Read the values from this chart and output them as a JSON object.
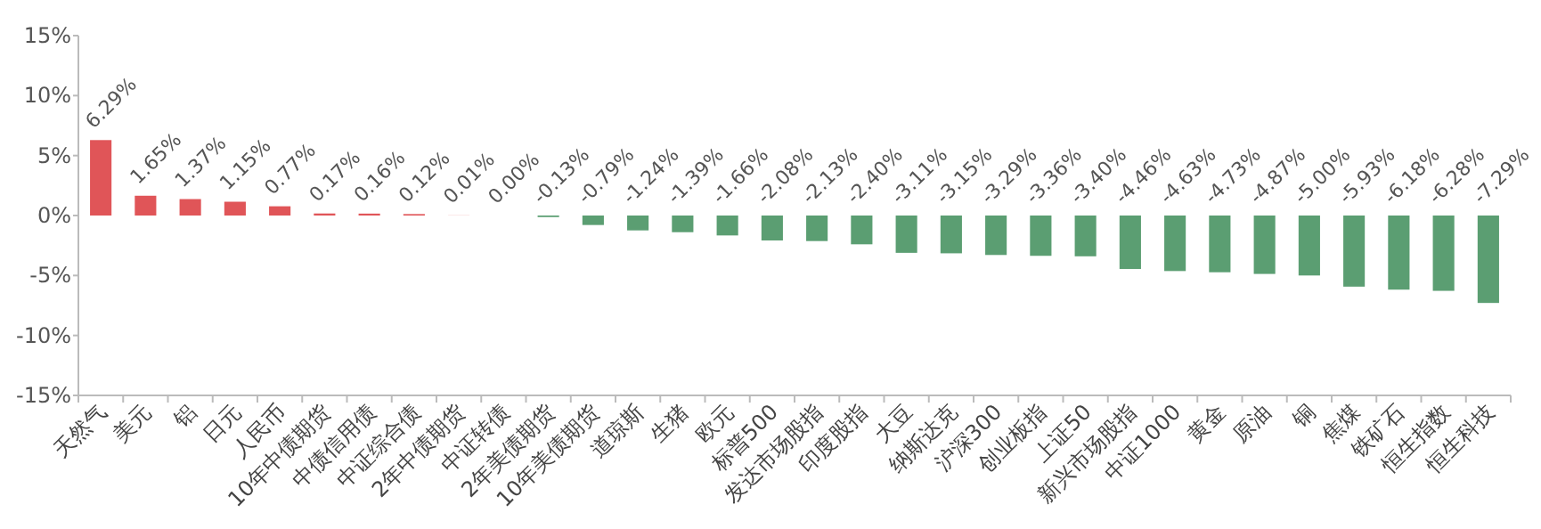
{
  "chart_data": {
    "type": "bar",
    "categories": [
      "天然气",
      "美元",
      "铝",
      "日元",
      "人民币",
      "10年中债期货",
      "中债信用债",
      "中证综合债",
      "2年中债期货",
      "中证转债",
      "2年美债期货",
      "10年美债期货",
      "道琼斯",
      "生猪",
      "欧元",
      "标普500",
      "发达市场股指",
      "印度股指",
      "大豆",
      "纳斯达克",
      "沪深300",
      "创业板指",
      "上证50",
      "新兴市场股指",
      "中证1000",
      "黄金",
      "原油",
      "铜",
      "焦煤",
      "铁矿石",
      "恒生指数",
      "恒生科技"
    ],
    "values": [
      6.29,
      1.65,
      1.37,
      1.15,
      0.77,
      0.17,
      0.16,
      0.12,
      0.01,
      0.0,
      -0.13,
      -0.79,
      -1.24,
      -1.39,
      -1.66,
      -2.08,
      -2.13,
      -2.4,
      -3.11,
      -3.15,
      -3.29,
      -3.36,
      -3.4,
      -4.46,
      -4.63,
      -4.73,
      -4.87,
      -5.0,
      -5.93,
      -6.18,
      -6.28,
      -7.29
    ],
    "value_labels": [
      "6.29%",
      "1.65%",
      "1.37%",
      "1.15%",
      "0.77%",
      "0.17%",
      "0.16%",
      "0.12%",
      "0.01%",
      "0.00%",
      "-0.13%",
      "-0.79%",
      "-1.24%",
      "-1.39%",
      "-1.66%",
      "-2.08%",
      "-2.13%",
      "-2.40%",
      "-3.11%",
      "-3.15%",
      "-3.29%",
      "-3.36%",
      "-3.40%",
      "-4.46%",
      "-4.63%",
      "-4.73%",
      "-4.87%",
      "-5.00%",
      "-5.93%",
      "-6.18%",
      "-6.28%",
      "-7.29%"
    ],
    "colors": [
      "#e05558",
      "#e05558",
      "#e05558",
      "#e05558",
      "#e05558",
      "#e05558",
      "#e05558",
      "#e05558",
      "#e05558",
      "#5b9e72",
      "#5b9e72",
      "#5b9e72",
      "#5b9e72",
      "#5b9e72",
      "#5b9e72",
      "#5b9e72",
      "#5b9e72",
      "#5b9e72",
      "#5b9e72",
      "#5b9e72",
      "#5b9e72",
      "#5b9e72",
      "#5b9e72",
      "#5b9e72",
      "#5b9e72",
      "#5b9e72",
      "#5b9e72",
      "#5b9e72",
      "#5b9e72",
      "#5b9e72",
      "#5b9e72",
      "#5b9e72"
    ],
    "ylim": [
      -15,
      15
    ],
    "yticks": [
      {
        "value": -15,
        "label": "-15%"
      },
      {
        "value": -10,
        "label": "-10%"
      },
      {
        "value": -5,
        "label": "-5%"
      },
      {
        "value": 0,
        "label": "0%"
      },
      {
        "value": 5,
        "label": "5%"
      },
      {
        "value": 10,
        "label": "10%"
      },
      {
        "value": 15,
        "label": "15%"
      }
    ],
    "grid": false
  }
}
